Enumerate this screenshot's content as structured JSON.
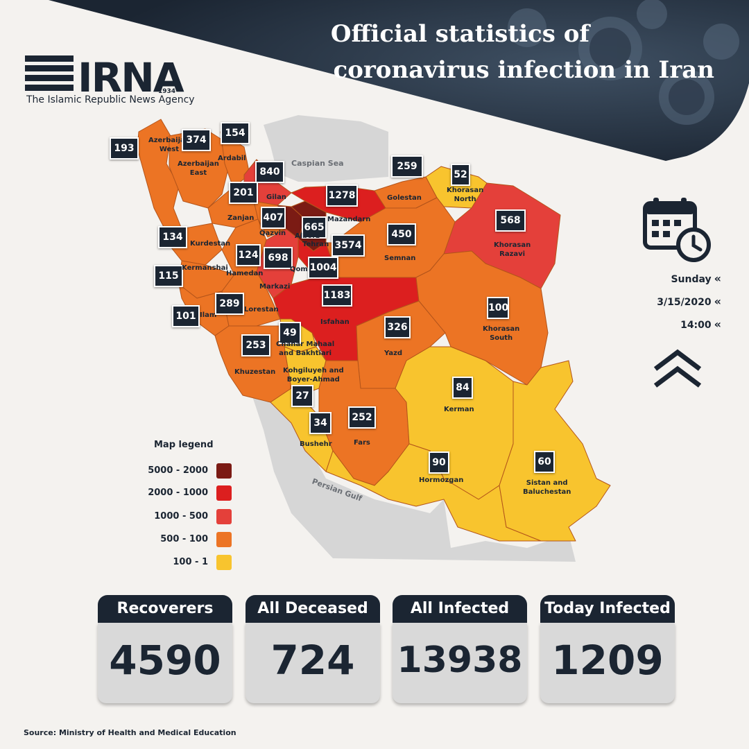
{
  "header": {
    "title_line1": "Official statistics of",
    "title_line2": "coronavirus infection in Iran",
    "logo_text": "IRNA",
    "logo_year": "1934",
    "agency": "The Islamic Republic News Agency"
  },
  "map": {
    "seas": {
      "caspian": "Caspian Sea",
      "persian_gulf": "Persian Gulf"
    },
    "provinces": [
      {
        "name_l1": "Azerbaijan",
        "name_l2": "West",
        "count": "193",
        "category": "100-500"
      },
      {
        "name_l1": "Azerbaijan",
        "name_l2": "East",
        "count": "374",
        "category": "100-500"
      },
      {
        "name_l1": "Ardabil",
        "name_l2": "",
        "count": "154",
        "category": "100-500"
      },
      {
        "name_l1": "Gilan",
        "name_l2": "",
        "count": "840",
        "category": "500-1000"
      },
      {
        "name_l1": "Zanjan",
        "name_l2": "",
        "count": "201",
        "category": "100-500"
      },
      {
        "name_l1": "Qazvin",
        "name_l2": "",
        "count": "407",
        "category": "100-500"
      },
      {
        "name_l1": "Alborz",
        "name_l2": "",
        "count": "665",
        "category": "500-1000"
      },
      {
        "name_l1": "Tehran",
        "name_l2": "",
        "count": "3574",
        "category": "2000-5000"
      },
      {
        "name_l1": "Mazandarn",
        "name_l2": "",
        "count": "1278",
        "category": "1000-2000"
      },
      {
        "name_l1": "Golestan",
        "name_l2": "",
        "count": "259",
        "category": "100-500"
      },
      {
        "name_l1": "Khorasan",
        "name_l2": "North",
        "count": "52",
        "category": "1-100"
      },
      {
        "name_l1": "Khorasan",
        "name_l2": "Razavi",
        "count": "568",
        "category": "500-1000"
      },
      {
        "name_l1": "Semnan",
        "name_l2": "",
        "count": "450",
        "category": "100-500"
      },
      {
        "name_l1": "Kurdestan",
        "name_l2": "",
        "count": "134",
        "category": "100-500"
      },
      {
        "name_l1": "Hamedan",
        "name_l2": "",
        "count": "124",
        "category": "100-500"
      },
      {
        "name_l1": "Kermanshai",
        "name_l2": "",
        "count": "115",
        "category": "100-500"
      },
      {
        "name_l1": "Markazi",
        "name_l2": "",
        "count": "698",
        "category": "500-1000"
      },
      {
        "name_l1": "Qom",
        "name_l2": "",
        "count": "1004",
        "category": "1000-2000"
      },
      {
        "name_l1": "Ilam",
        "name_l2": "",
        "count": "101",
        "category": "100-500"
      },
      {
        "name_l1": "Lorestan",
        "name_l2": "",
        "count": "289",
        "category": "100-500"
      },
      {
        "name_l1": "Isfahan",
        "name_l2": "",
        "count": "1183",
        "category": "1000-2000"
      },
      {
        "name_l1": "Chahar Mahaal",
        "name_l2": "and Bakhtiari",
        "count": "49",
        "category": "1-100"
      },
      {
        "name_l1": "Khuzestan",
        "name_l2": "",
        "count": "253",
        "category": "100-500"
      },
      {
        "name_l1": "Kohgiluyeh and",
        "name_l2": "Boyer-Ahmad",
        "count": "27",
        "category": "1-100"
      },
      {
        "name_l1": "Yazd",
        "name_l2": "",
        "count": "326",
        "category": "100-500"
      },
      {
        "name_l1": "Khorasan",
        "name_l2": "South",
        "count": "100",
        "category": "100-500"
      },
      {
        "name_l1": "Kerman",
        "name_l2": "",
        "count": "84",
        "category": "1-100"
      },
      {
        "name_l1": "Bushehr",
        "name_l2": "",
        "count": "34",
        "category": "1-100"
      },
      {
        "name_l1": "Fars",
        "name_l2": "",
        "count": "252",
        "category": "100-500"
      },
      {
        "name_l1": "Hormozgan",
        "name_l2": "",
        "count": "90",
        "category": "1-100"
      },
      {
        "name_l1": "Sistan and",
        "name_l2": "Baluchestan",
        "count": "60",
        "category": "1-100"
      }
    ]
  },
  "legend": {
    "title": "Map legend",
    "items": [
      {
        "label": "5000 - 2000",
        "color": "#7b1b14"
      },
      {
        "label": "2000 - 1000",
        "color": "#dc1f1f"
      },
      {
        "label": "1000 - 500",
        "color": "#e4403a"
      },
      {
        "label": "500 - 100",
        "color": "#ec7424"
      },
      {
        "label": "100 - 1",
        "color": "#f8c42e"
      }
    ]
  },
  "date": {
    "day": "Sunday",
    "date": "3/15/2020",
    "time": "14:00"
  },
  "stats": [
    {
      "label": "Recoverers",
      "value": "4590"
    },
    {
      "label": "All Deceased",
      "value": "724"
    },
    {
      "label": "All Infected",
      "value": "13938"
    },
    {
      "label": "Today Infected",
      "value": "1209"
    }
  ],
  "source": "Source: Ministry of Health and Medical Education",
  "icons": {
    "calendar": "calendar-clock-icon",
    "scroll_up": "double-chevron-up-icon"
  }
}
